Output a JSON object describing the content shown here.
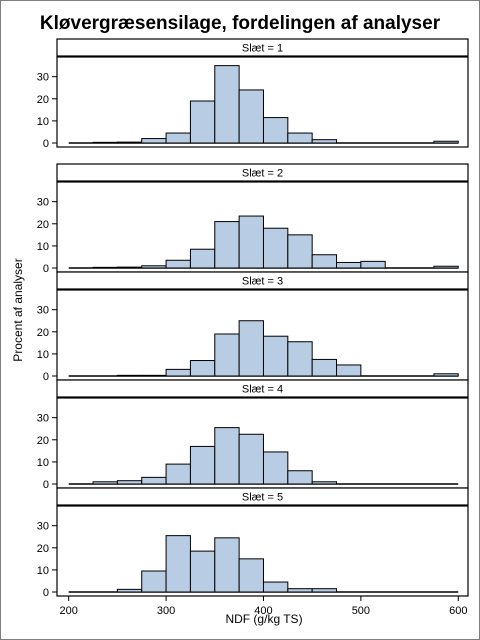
{
  "chart_data": {
    "type": "bar",
    "title": "Kløvergræsensilage, fordelingen af analyser",
    "xlabel": "NDF (g/kg TS)",
    "ylabel": "Procent af analyser",
    "bin_width": 25,
    "bin_starts": [
      200,
      225,
      250,
      275,
      300,
      325,
      350,
      375,
      400,
      425,
      450,
      475,
      500,
      525,
      550,
      575
    ],
    "xlim": [
      188,
      610
    ],
    "x_ticks": [
      "200",
      "300",
      "400",
      "500",
      "600"
    ],
    "ylim": [
      0,
      38
    ],
    "y_ticks": [
      "0",
      "10",
      "20",
      "30"
    ],
    "panels": [
      {
        "label": "Slæt = 1",
        "values": [
          0,
          0.3,
          0.4,
          2,
          4.5,
          19,
          35,
          24,
          11.5,
          4.5,
          1.5,
          0,
          0,
          0,
          0,
          0.8
        ]
      },
      {
        "label": "Slæt = 2",
        "values": [
          0,
          0.3,
          0.4,
          1,
          3.5,
          8.5,
          21,
          23.5,
          18,
          15,
          6,
          2.5,
          3,
          0,
          0,
          0.8
        ]
      },
      {
        "label": "Slæt = 3",
        "values": [
          0,
          0,
          0.3,
          0.3,
          3,
          7,
          19,
          25,
          18,
          15.5,
          7.5,
          5,
          0,
          0,
          0,
          1
        ]
      },
      {
        "label": "Slæt = 4",
        "values": [
          0,
          1,
          1.5,
          3,
          9,
          17,
          25.5,
          22.5,
          14.5,
          6,
          1,
          0,
          0,
          0,
          0,
          0
        ]
      },
      {
        "label": "Slæt = 5",
        "values": [
          0,
          0,
          1.2,
          9.5,
          25.5,
          18.5,
          24.5,
          15,
          4.5,
          1.5,
          1.5,
          0,
          0,
          0,
          0,
          0
        ]
      }
    ]
  }
}
